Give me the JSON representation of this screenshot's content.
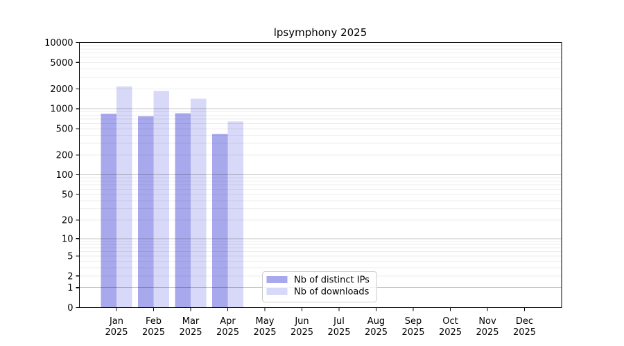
{
  "chart_data": {
    "type": "bar",
    "title": "lpsymphony 2025",
    "year": "2025",
    "categories": [
      "Jan",
      "Feb",
      "Mar",
      "Apr",
      "May",
      "Jun",
      "Jul",
      "Aug",
      "Sep",
      "Oct",
      "Nov",
      "Dec"
    ],
    "series": [
      {
        "name": "Nb of distinct IPs",
        "color": "#a8a8ed",
        "values": [
          840,
          770,
          855,
          415,
          null,
          null,
          null,
          null,
          null,
          null,
          null,
          null
        ]
      },
      {
        "name": "Nb of downloads",
        "color": "#d8d8f8",
        "values": [
          2180,
          1860,
          1420,
          645,
          null,
          null,
          null,
          null,
          null,
          null,
          null,
          null
        ]
      }
    ],
    "yticks": [
      0,
      1,
      2,
      5,
      10,
      20,
      50,
      100,
      200,
      500,
      1000,
      2000,
      5000,
      10000
    ],
    "scale": "log1p",
    "ylim": [
      0,
      10000
    ],
    "grid": "horizontal",
    "legend_position": "bottom-center",
    "colors": {
      "background": "#ffffff",
      "spine": "#000000",
      "grid_minor": "rgba(0,0,0,0.07)",
      "grid_major": "rgba(0,0,0,0.22)",
      "legend_border": "#cccccc",
      "legend_fill": "rgba(255,255,255,0.8)"
    }
  }
}
